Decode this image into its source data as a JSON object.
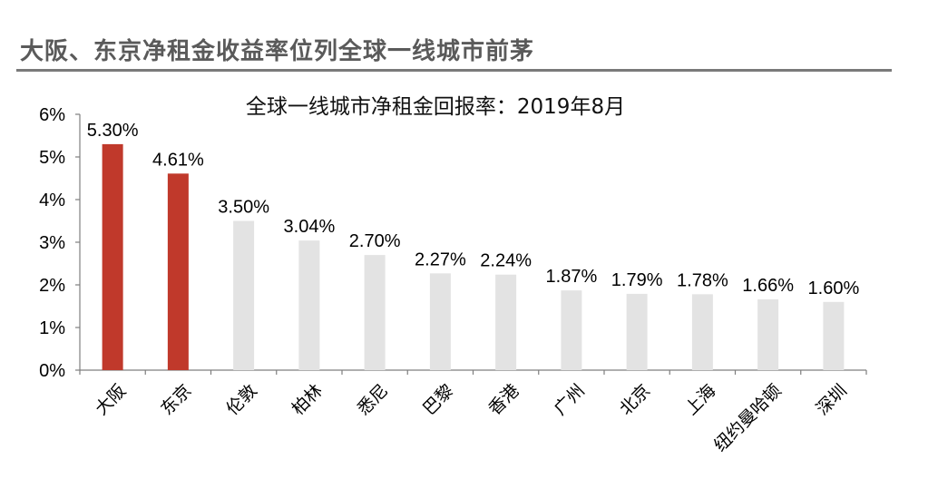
{
  "header": {
    "title": "大阪、东京净租金收益率位列全球一线城市前茅"
  },
  "chart_data": {
    "type": "bar",
    "title": "全球一线城市净租金回报率：2019年8月",
    "categories": [
      "大阪",
      "东京",
      "伦敦",
      "柏林",
      "悉尼",
      "巴黎",
      "香港",
      "广州",
      "北京",
      "上海",
      "纽约曼哈顿",
      "深圳"
    ],
    "values": [
      5.3,
      4.61,
      3.5,
      3.04,
      2.7,
      2.27,
      2.24,
      1.87,
      1.79,
      1.78,
      1.66,
      1.6
    ],
    "data_labels": [
      "5.30%",
      "4.61%",
      "3.50%",
      "3.04%",
      "2.70%",
      "2.27%",
      "2.24%",
      "1.87%",
      "1.79%",
      "1.78%",
      "1.66%",
      "1.60%"
    ],
    "y_ticks": [
      0,
      1,
      2,
      3,
      4,
      5,
      6
    ],
    "y_tick_labels": [
      "0%",
      "1%",
      "2%",
      "3%",
      "4%",
      "5%",
      "6%"
    ],
    "ylim": [
      0,
      6
    ],
    "xlabel": "",
    "ylabel": "",
    "grid": false,
    "highlight_color": "#c0392b",
    "base_color": "#e3e3e3",
    "highlight_categories": [
      "大阪",
      "东京"
    ]
  }
}
